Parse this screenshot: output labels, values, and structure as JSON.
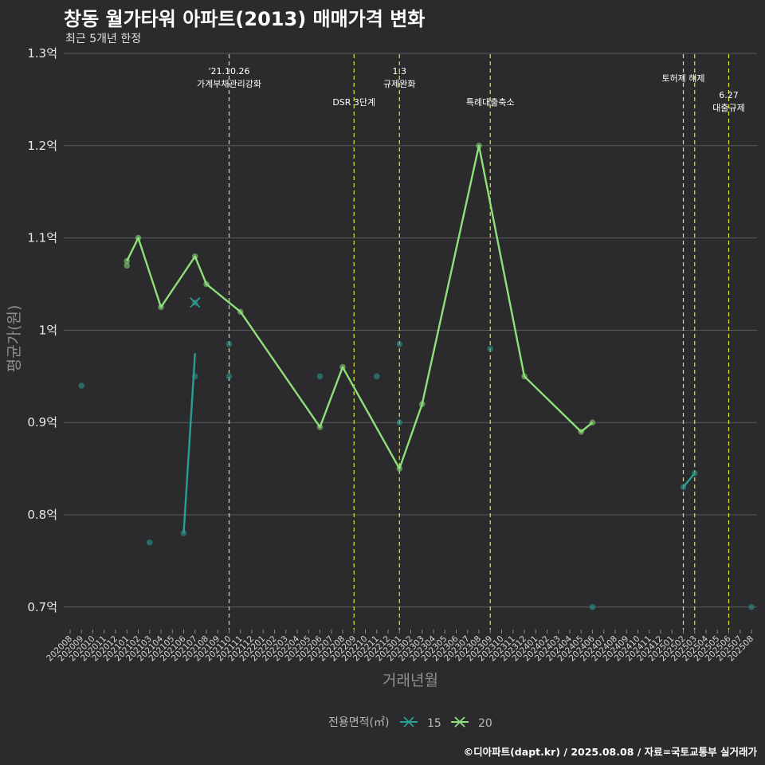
{
  "chart_data": {
    "type": "line",
    "title": "창동 월가타워 아파트(2013) 매매가격 변화",
    "subtitle": "최근 5개년 한정",
    "xlabel": "거래년월",
    "ylabel": "평균가(원)",
    "ylim": [
      0.675,
      1.3
    ],
    "y_ticks": [
      {
        "value": 0.7,
        "label": "0.7억"
      },
      {
        "value": 0.8,
        "label": "0.8억"
      },
      {
        "value": 0.9,
        "label": "0.9억"
      },
      {
        "value": 1.0,
        "label": "1억"
      },
      {
        "value": 1.1,
        "label": "1.1억"
      },
      {
        "value": 1.2,
        "label": "1.2억"
      },
      {
        "value": 1.3,
        "label": "1.3억"
      }
    ],
    "categories": [
      "202008",
      "202009",
      "202010",
      "202011",
      "202012",
      "202101",
      "202102",
      "202103",
      "202104",
      "202105",
      "202106",
      "202107",
      "202108",
      "202109",
      "202110",
      "202111",
      "202112",
      "202201",
      "202202",
      "202203",
      "202204",
      "202205",
      "202206",
      "202207",
      "202208",
      "202209",
      "202210",
      "202211",
      "202212",
      "202301",
      "202302",
      "202303",
      "202304",
      "202305",
      "202306",
      "202307",
      "202308",
      "202309",
      "202310",
      "202311",
      "202312",
      "202401",
      "202402",
      "202403",
      "202404",
      "202405",
      "202406",
      "202407",
      "202408",
      "202409",
      "202410",
      "202411",
      "202412",
      "202501",
      "202502",
      "202503",
      "202504",
      "202505",
      "202506",
      "202507",
      "202508"
    ],
    "grid": true,
    "legend": {
      "title": "전용면적(㎡)",
      "position": "bottom"
    },
    "series": [
      {
        "name": "15",
        "color": "#2a9d94",
        "line": [
          {
            "x": "202106",
            "y": 0.78
          },
          {
            "x": "202107",
            "y": 0.975
          }
        ],
        "line2": [
          {
            "x": "202502",
            "y": 0.83
          },
          {
            "x": "202503",
            "y": 0.845
          }
        ],
        "points": [
          {
            "x": "202009",
            "y": 0.94
          },
          {
            "x": "202103",
            "y": 0.77
          },
          {
            "x": "202106",
            "y": 0.78
          },
          {
            "x": "202107",
            "y": 1.03
          },
          {
            "x": "202107",
            "y": 0.95
          },
          {
            "x": "202110",
            "y": 0.985
          },
          {
            "x": "202110",
            "y": 0.95
          },
          {
            "x": "202206",
            "y": 0.95
          },
          {
            "x": "202211",
            "y": 0.95
          },
          {
            "x": "202301",
            "y": 0.985
          },
          {
            "x": "202301",
            "y": 0.9
          },
          {
            "x": "202309",
            "y": 0.98
          },
          {
            "x": "202406",
            "y": 0.7
          },
          {
            "x": "202502",
            "y": 0.83
          },
          {
            "x": "202503",
            "y": 0.845
          },
          {
            "x": "202508",
            "y": 0.7
          }
        ]
      },
      {
        "name": "20",
        "color": "#8ee07a",
        "line": [
          {
            "x": "202101",
            "y": 1.075
          },
          {
            "x": "202102",
            "y": 1.1
          },
          {
            "x": "202104",
            "y": 1.025
          },
          {
            "x": "202107",
            "y": 1.08
          },
          {
            "x": "202108",
            "y": 1.05
          },
          {
            "x": "202111",
            "y": 1.02
          },
          {
            "x": "202206",
            "y": 0.895
          },
          {
            "x": "202208",
            "y": 0.96
          },
          {
            "x": "202301",
            "y": 0.85
          },
          {
            "x": "202303",
            "y": 0.92
          },
          {
            "x": "202308",
            "y": 1.2
          },
          {
            "x": "202312",
            "y": 0.95
          },
          {
            "x": "202405",
            "y": 0.89
          },
          {
            "x": "202406",
            "y": 0.9
          }
        ],
        "points": [
          {
            "x": "202101",
            "y": 1.075
          },
          {
            "x": "202101",
            "y": 1.07
          },
          {
            "x": "202102",
            "y": 1.1
          },
          {
            "x": "202104",
            "y": 1.025
          },
          {
            "x": "202107",
            "y": 1.08
          },
          {
            "x": "202108",
            "y": 1.05
          },
          {
            "x": "202111",
            "y": 1.02
          },
          {
            "x": "202206",
            "y": 0.895
          },
          {
            "x": "202208",
            "y": 0.96
          },
          {
            "x": "202301",
            "y": 0.85
          },
          {
            "x": "202303",
            "y": 0.92
          },
          {
            "x": "202308",
            "y": 1.2
          },
          {
            "x": "202312",
            "y": 0.95
          },
          {
            "x": "202405",
            "y": 0.89
          },
          {
            "x": "202406",
            "y": 0.9
          }
        ]
      }
    ],
    "events": [
      {
        "x": "202110",
        "lines": [
          "'21.10.26",
          "가계부채관리강화"
        ]
      },
      {
        "x": "202209",
        "lines": [
          "DSR 3단계"
        ]
      },
      {
        "x": "202301",
        "lines": [
          "1.3",
          "규제완화"
        ]
      },
      {
        "x": "202309",
        "lines": [
          "특례대출축소"
        ]
      },
      {
        "x": "202502",
        "lines": [
          "토허제 해제"
        ]
      },
      {
        "x": "202503",
        "lines": [
          ""
        ]
      },
      {
        "x": "202506",
        "lines": [
          "6.27",
          "대출규제"
        ]
      }
    ]
  },
  "caption": "©디아파트(dapt.kr) / 2025.08.08 / 자료=국토교통부 실거래가"
}
